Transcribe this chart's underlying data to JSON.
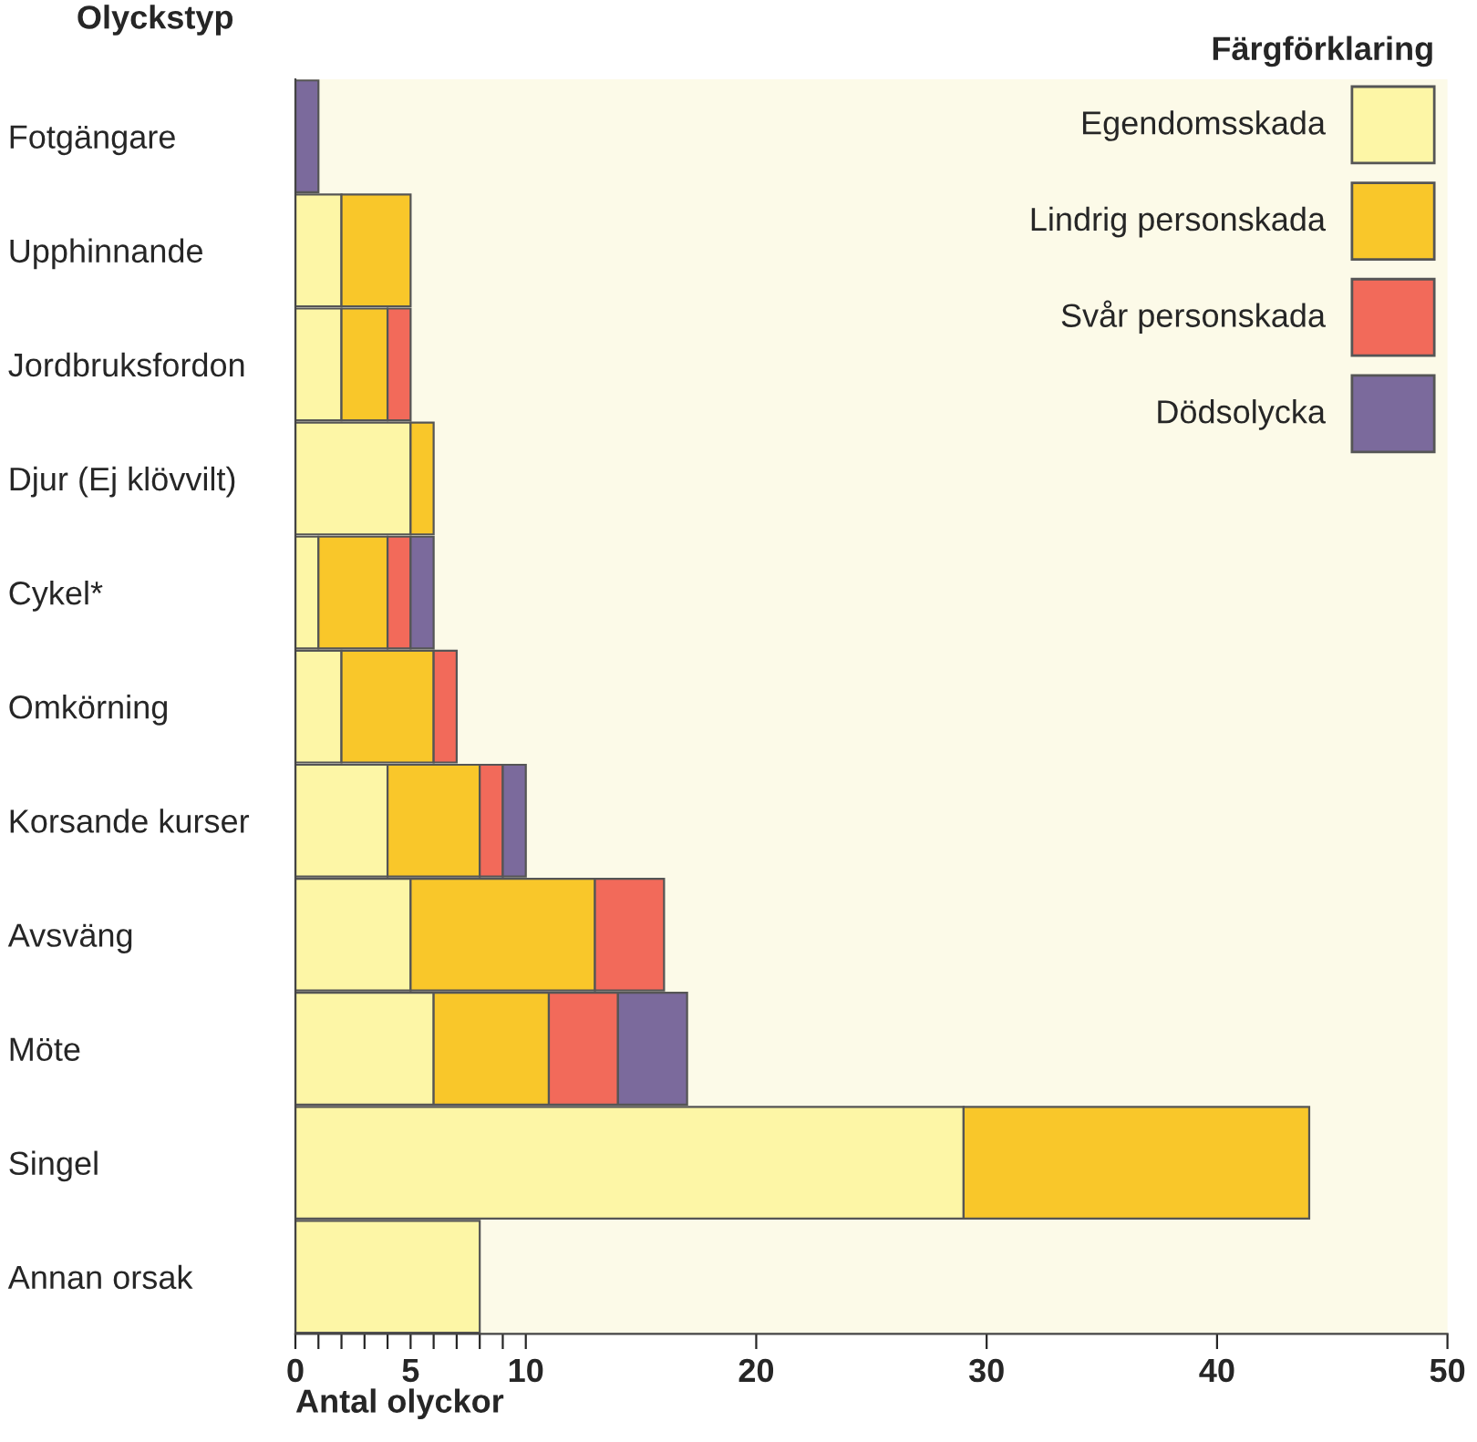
{
  "chart_data": {
    "type": "bar",
    "orientation": "horizontal",
    "stacked": true,
    "ylabel": "Olyckstyp",
    "xlabel": "Antal olyckor",
    "legend_title": "Färgförklaring",
    "legend": "top right",
    "grid": false,
    "categories": [
      "Fotgängare",
      "Upphinnande",
      "Jordbruksfordon",
      "Djur (Ej klövvilt)",
      "Cykel*",
      "Omkörning",
      "Korsande kurser",
      "Avsväng",
      "Möte",
      "Singel",
      "Annan orsak"
    ],
    "series": [
      {
        "name": "Egendomsskada",
        "color": "#fdf6a6",
        "values": [
          null,
          2,
          2,
          5,
          1,
          2,
          4,
          5,
          6,
          29,
          8
        ]
      },
      {
        "name": "Lindrig personskada",
        "color": "#f9c72a",
        "values": [
          null,
          3,
          2,
          1,
          3,
          4,
          4,
          8,
          5,
          15,
          null
        ]
      },
      {
        "name": "Svår personskada",
        "color": "#f26a5a",
        "values": [
          null,
          null,
          1,
          null,
          1,
          1,
          1,
          3,
          3,
          null,
          null
        ]
      },
      {
        "name": "Dödsolycka",
        "color": "#7b6a9c",
        "values": [
          1,
          null,
          null,
          null,
          1,
          null,
          1,
          null,
          3,
          null,
          null
        ]
      }
    ],
    "xlim": [
      0,
      50
    ],
    "xticks": [
      0,
      {
        "value": 1,
        "label": null
      },
      {
        "value": 2,
        "label": null
      },
      {
        "value": 3,
        "label": null
      },
      {
        "value": 4,
        "label": null
      },
      5,
      {
        "value": 6,
        "label": null
      },
      {
        "value": 7,
        "label": null
      },
      {
        "value": 8,
        "label": null
      },
      {
        "value": 9,
        "label": null
      },
      10,
      20,
      30,
      40,
      50
    ]
  }
}
